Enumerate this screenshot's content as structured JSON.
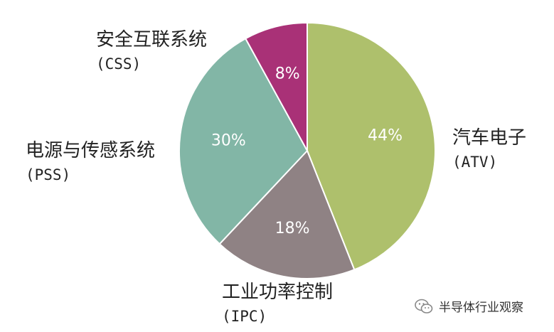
{
  "chart_data": {
    "type": "pie",
    "title": "",
    "slices": [
      {
        "label": "汽车电子",
        "abbr": "(ATV)",
        "value": 44,
        "value_label": "44%",
        "color": "#aec06c"
      },
      {
        "label": "工业功率控制",
        "abbr": "(IPC)",
        "value": 18,
        "value_label": "18%",
        "color": "#8f8284"
      },
      {
        "label": "电源与传感系统",
        "abbr": "(PSS)",
        "value": 30,
        "value_label": "30%",
        "color": "#82b6a6"
      },
      {
        "label": "安全互联系统",
        "abbr": "(CSS)",
        "value": 8,
        "value_label": "8%",
        "color": "#a93177"
      }
    ],
    "start_angle": "12 o'clock",
    "direction": "clockwise"
  },
  "watermark": {
    "text": "半导体行业观察",
    "icon": "wechat-icon"
  }
}
